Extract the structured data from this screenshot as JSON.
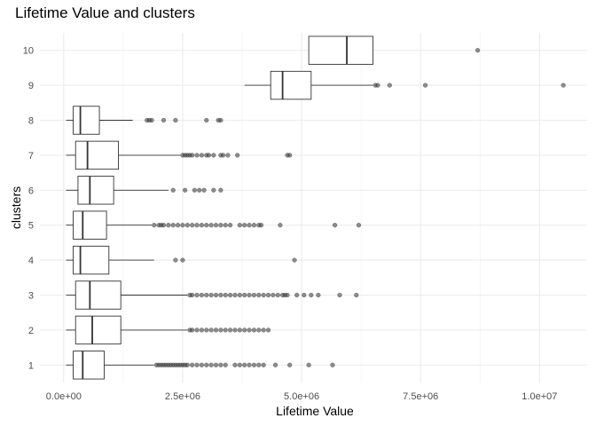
{
  "chart_data": {
    "type": "boxplot",
    "title": "Lifetime Value and clusters",
    "xlabel": "Lifetime Value",
    "ylabel": "clusters",
    "xlim": [
      -500000,
      11000000
    ],
    "x_ticks": [
      0,
      2500000,
      5000000,
      7500000,
      10000000
    ],
    "x_tick_labels": [
      "0.0e+00",
      "2.5e+06",
      "5.0e+06",
      "7.5e+06",
      "1.0e+07"
    ],
    "categories": [
      "1",
      "2",
      "3",
      "4",
      "5",
      "6",
      "7",
      "8",
      "9",
      "10"
    ],
    "grid": true,
    "boxes": [
      {
        "cluster": "1",
        "min": 50000,
        "q1": 200000,
        "median": 400000,
        "q3": 850000,
        "max": 1900000,
        "outliers": [
          1950000,
          2000000,
          2050000,
          2100000,
          2150000,
          2200000,
          2250000,
          2300000,
          2350000,
          2400000,
          2450000,
          2500000,
          2550000,
          2600000,
          2700000,
          2800000,
          2900000,
          3000000,
          3100000,
          3200000,
          3300000,
          3400000,
          3600000,
          3700000,
          3800000,
          3900000,
          4000000,
          4100000,
          4200000,
          4450000,
          4750000,
          5150000,
          5650000
        ]
      },
      {
        "cluster": "2",
        "min": 50000,
        "q1": 250000,
        "median": 600000,
        "q3": 1200000,
        "max": 2600000,
        "outliers": [
          2650000,
          2700000,
          2800000,
          2900000,
          3000000,
          3100000,
          3200000,
          3300000,
          3400000,
          3500000,
          3600000,
          3700000,
          3800000,
          3900000,
          4000000,
          4100000,
          4200000,
          4300000
        ]
      },
      {
        "cluster": "3",
        "min": 50000,
        "q1": 250000,
        "median": 550000,
        "q3": 1200000,
        "max": 2600000,
        "outliers": [
          2650000,
          2700000,
          2800000,
          2900000,
          3000000,
          3100000,
          3200000,
          3300000,
          3400000,
          3500000,
          3600000,
          3700000,
          3800000,
          3900000,
          4000000,
          4100000,
          4200000,
          4300000,
          4400000,
          4500000,
          4600000,
          4650000,
          4700000,
          4900000,
          5050000,
          5200000,
          5350000,
          5800000,
          6150000
        ]
      },
      {
        "cluster": "4",
        "min": 50000,
        "q1": 200000,
        "median": 350000,
        "q3": 950000,
        "max": 1900000,
        "outliers": [
          2350000,
          2500000,
          4850000
        ]
      },
      {
        "cluster": "5",
        "min": 50000,
        "q1": 200000,
        "median": 400000,
        "q3": 900000,
        "max": 1850000,
        "outliers": [
          1900000,
          2000000,
          2050000,
          2100000,
          2200000,
          2300000,
          2400000,
          2500000,
          2600000,
          2700000,
          2800000,
          2900000,
          3000000,
          3100000,
          3200000,
          3300000,
          3400000,
          3500000,
          3700000,
          3800000,
          3900000,
          4000000,
          4100000,
          4150000,
          4550000,
          5700000,
          6200000
        ]
      },
      {
        "cluster": "6",
        "min": 50000,
        "q1": 300000,
        "median": 550000,
        "q3": 1050000,
        "max": 2200000,
        "outliers": [
          2300000,
          2550000,
          2750000,
          2850000,
          2950000,
          3150000,
          3300000
        ]
      },
      {
        "cluster": "7",
        "min": 50000,
        "q1": 250000,
        "median": 500000,
        "q3": 1150000,
        "max": 2450000,
        "outliers": [
          2500000,
          2550000,
          2600000,
          2650000,
          2700000,
          2800000,
          2900000,
          3000000,
          3050000,
          3150000,
          3300000,
          3350000,
          3450000,
          3650000,
          4700000,
          4750000
        ]
      },
      {
        "cluster": "8",
        "min": 50000,
        "q1": 200000,
        "median": 350000,
        "q3": 750000,
        "max": 1450000,
        "outliers": [
          1750000,
          1800000,
          1850000,
          2100000,
          2350000,
          3000000,
          3250000,
          3300000
        ]
      },
      {
        "cluster": "9",
        "min": 3800000,
        "q1": 4350000,
        "median": 4600000,
        "q3": 5200000,
        "max": 6500000,
        "outliers": [
          6550000,
          6600000,
          6850000,
          7600000,
          10500000
        ]
      },
      {
        "cluster": "10",
        "min": 5150000,
        "q1": 5150000,
        "median": 5950000,
        "q3": 6500000,
        "max": 6500000,
        "outliers": [
          8700000
        ]
      }
    ]
  }
}
